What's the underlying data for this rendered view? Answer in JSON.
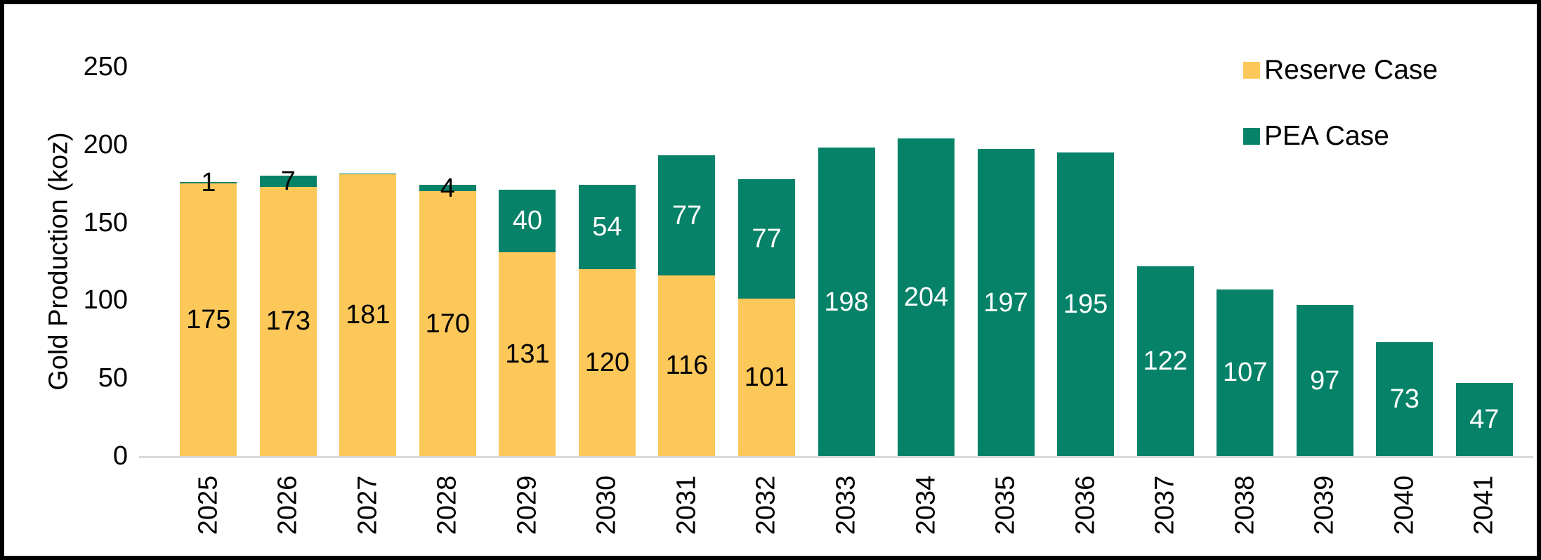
{
  "chart_data": {
    "type": "bar",
    "stacked": true,
    "title": "",
    "ylabel": "Gold Production (koz)",
    "xlabel": "",
    "ylim": [
      0,
      250
    ],
    "yticks": [
      0,
      50,
      100,
      150,
      200,
      250
    ],
    "grid": false,
    "legend_position": "top-right",
    "axis_line_color": "#D9D9D9",
    "categories": [
      "2025",
      "2026",
      "2027",
      "2028",
      "2029",
      "2030",
      "2031",
      "2032",
      "2033",
      "2034",
      "2035",
      "2036",
      "2037",
      "2038",
      "2039",
      "2040",
      "2041"
    ],
    "series": [
      {
        "name": "Reserve Case",
        "color": "#FDC85A",
        "label_color": "#000000",
        "values": [
          175,
          173,
          181,
          170,
          131,
          120,
          116,
          101,
          0,
          0,
          0,
          0,
          0,
          0,
          0,
          0,
          0
        ],
        "labels": [
          "175",
          "173",
          "181",
          "170",
          "131",
          "120",
          "116",
          "101",
          "",
          "",
          "",
          "",
          "",
          "",
          "",
          "",
          ""
        ]
      },
      {
        "name": "PEA Case",
        "color": "#058268",
        "label_color": "#FFFFFF",
        "values": [
          1,
          7,
          0.5,
          4,
          40,
          54,
          77,
          77,
          198,
          204,
          197,
          195,
          122,
          107,
          97,
          73,
          47
        ],
        "labels": [
          "1",
          "7",
          "",
          "4",
          "40",
          "54",
          "77",
          "77",
          "198",
          "204",
          "197",
          "195",
          "122",
          "107",
          "97",
          "73",
          "47"
        ]
      }
    ]
  }
}
